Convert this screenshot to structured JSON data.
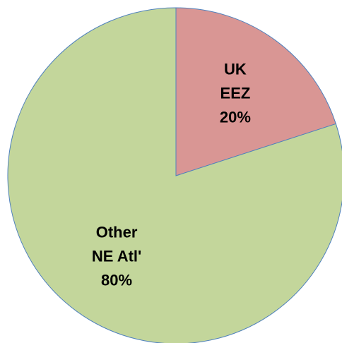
{
  "chart_data": {
    "type": "pie",
    "categories": [
      "UK\nEEZ",
      "Other\nNE Atl'"
    ],
    "values": [
      20,
      80
    ],
    "value_labels": [
      "20%",
      "80%"
    ],
    "colors": [
      "#d99694",
      "#c3d69b"
    ]
  }
}
